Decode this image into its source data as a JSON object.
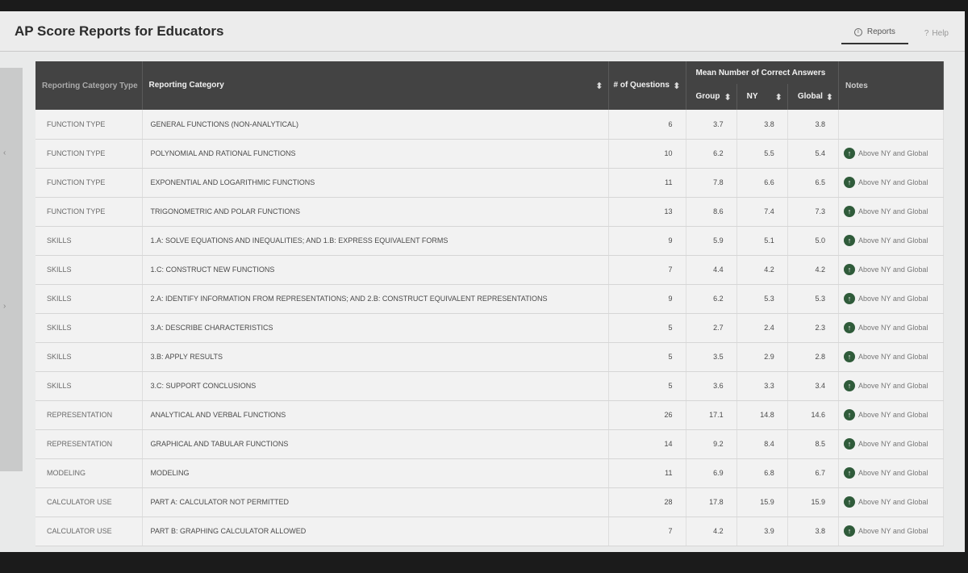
{
  "app": {
    "title": "AP Score Reports for Educators",
    "nav": {
      "reports": "Reports",
      "help": "Help"
    }
  },
  "table": {
    "headers": {
      "reporting_category_type": "Reporting Category Type",
      "reporting_category": "Reporting Category",
      "num_questions": "# of Questions",
      "mean_group": "Mean Number of Correct Answers",
      "group": "Group",
      "ny": "NY",
      "global": "Global",
      "notes": "Notes"
    },
    "rows": [
      {
        "type": "FUNCTION TYPE",
        "category": "GENERAL FUNCTIONS (NON-ANALYTICAL)",
        "questions": "6",
        "group": "3.7",
        "ny": "3.8",
        "global": "3.8",
        "note": ""
      },
      {
        "type": "FUNCTION TYPE",
        "category": "POLYNOMIAL AND RATIONAL FUNCTIONS",
        "questions": "10",
        "group": "6.2",
        "ny": "5.5",
        "global": "5.4",
        "note": "Above NY and Global"
      },
      {
        "type": "FUNCTION TYPE",
        "category": "EXPONENTIAL AND LOGARITHMIC FUNCTIONS",
        "questions": "11",
        "group": "7.8",
        "ny": "6.6",
        "global": "6.5",
        "note": "Above NY and Global"
      },
      {
        "type": "FUNCTION TYPE",
        "category": "TRIGONOMETRIC AND POLAR FUNCTIONS",
        "questions": "13",
        "group": "8.6",
        "ny": "7.4",
        "global": "7.3",
        "note": "Above NY and Global"
      },
      {
        "type": "SKILLS",
        "category": "1.A: SOLVE EQUATIONS AND INEQUALITIES; AND 1.B: EXPRESS EQUIVALENT FORMS",
        "questions": "9",
        "group": "5.9",
        "ny": "5.1",
        "global": "5.0",
        "note": "Above NY and Global"
      },
      {
        "type": "SKILLS",
        "category": "1.C: CONSTRUCT NEW FUNCTIONS",
        "questions": "7",
        "group": "4.4",
        "ny": "4.2",
        "global": "4.2",
        "note": "Above NY and Global"
      },
      {
        "type": "SKILLS",
        "category": "2.A: IDENTIFY INFORMATION FROM REPRESENTATIONS; AND 2.B: CONSTRUCT EQUIVALENT REPRESENTATIONS",
        "questions": "9",
        "group": "6.2",
        "ny": "5.3",
        "global": "5.3",
        "note": "Above NY and Global"
      },
      {
        "type": "SKILLS",
        "category": "3.A: DESCRIBE CHARACTERISTICS",
        "questions": "5",
        "group": "2.7",
        "ny": "2.4",
        "global": "2.3",
        "note": "Above NY and Global"
      },
      {
        "type": "SKILLS",
        "category": "3.B: APPLY RESULTS",
        "questions": "5",
        "group": "3.5",
        "ny": "2.9",
        "global": "2.8",
        "note": "Above NY and Global"
      },
      {
        "type": "SKILLS",
        "category": "3.C: SUPPORT CONCLUSIONS",
        "questions": "5",
        "group": "3.6",
        "ny": "3.3",
        "global": "3.4",
        "note": "Above NY and Global"
      },
      {
        "type": "REPRESENTATION",
        "category": "ANALYTICAL AND VERBAL FUNCTIONS",
        "questions": "26",
        "group": "17.1",
        "ny": "14.8",
        "global": "14.6",
        "note": "Above NY and Global"
      },
      {
        "type": "REPRESENTATION",
        "category": "GRAPHICAL AND TABULAR FUNCTIONS",
        "questions": "14",
        "group": "9.2",
        "ny": "8.4",
        "global": "8.5",
        "note": "Above NY and Global"
      },
      {
        "type": "MODELING",
        "category": "MODELING",
        "questions": "11",
        "group": "6.9",
        "ny": "6.8",
        "global": "6.7",
        "note": "Above NY and Global"
      },
      {
        "type": "CALCULATOR USE",
        "category": "PART A: CALCULATOR NOT PERMITTED",
        "questions": "28",
        "group": "17.8",
        "ny": "15.9",
        "global": "15.9",
        "note": "Above NY and Global"
      },
      {
        "type": "CALCULATOR USE",
        "category": "PART B: GRAPHING CALCULATOR ALLOWED",
        "questions": "7",
        "group": "4.2",
        "ny": "3.9",
        "global": "3.8",
        "note": "Above NY and Global"
      }
    ]
  },
  "icons": {
    "reports": "info-icon",
    "help": "help-icon",
    "sort": "sort-icon",
    "note": "arrow-up-circle-icon"
  },
  "colors": {
    "header_bg": "#434343",
    "note_icon": "#2f5b3a",
    "page_bg": "#e9eaea"
  }
}
